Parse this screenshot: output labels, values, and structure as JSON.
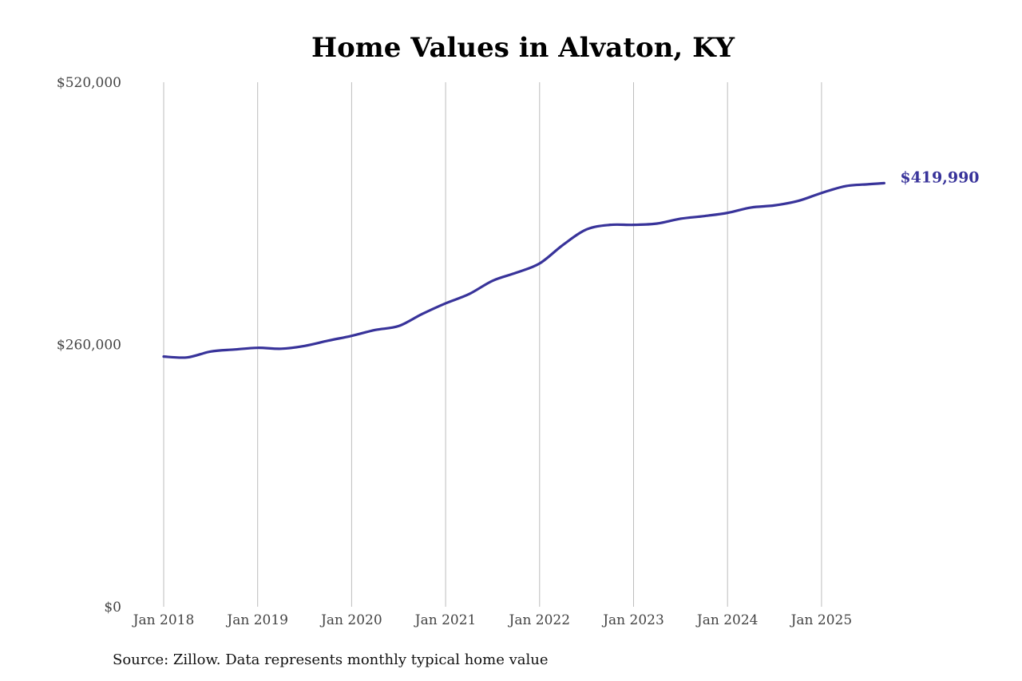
{
  "chart_data": {
    "type": "line",
    "title": "Home Values in Alvaton, KY",
    "source_note": "Source: Zillow. Data represents monthly typical home value",
    "xlabel": "",
    "ylabel": "",
    "ylim": [
      0,
      520000
    ],
    "y_ticks": [
      0,
      260000,
      520000
    ],
    "y_tick_labels": [
      "$0",
      "$260,000",
      "$520,000"
    ],
    "x_ticks": [
      "2018-01",
      "2019-01",
      "2020-01",
      "2021-01",
      "2022-01",
      "2023-01",
      "2024-01",
      "2025-01"
    ],
    "x_tick_labels": [
      "Jan 2018",
      "Jan 2019",
      "Jan 2020",
      "Jan 2021",
      "Jan 2022",
      "Jan 2023",
      "Jan 2024",
      "Jan 2025"
    ],
    "grid": {
      "vertical": true,
      "horizontal": false
    },
    "legend": "none",
    "line_color": "#38339a",
    "end_label": "$419,990",
    "x": [
      "2018-01",
      "2018-04",
      "2018-07",
      "2018-10",
      "2019-01",
      "2019-04",
      "2019-07",
      "2019-10",
      "2020-01",
      "2020-04",
      "2020-07",
      "2020-10",
      "2021-01",
      "2021-04",
      "2021-07",
      "2021-10",
      "2022-01",
      "2022-04",
      "2022-07",
      "2022-10",
      "2023-01",
      "2023-04",
      "2023-07",
      "2023-10",
      "2024-01",
      "2024-04",
      "2024-07",
      "2024-10",
      "2025-01",
      "2025-04",
      "2025-07",
      "2025-09"
    ],
    "values": [
      248000,
      247200,
      253000,
      255000,
      256700,
      255800,
      258600,
      263800,
      268600,
      274400,
      278300,
      290200,
      300800,
      310000,
      323200,
      331100,
      340300,
      358800,
      374100,
      378600,
      378600,
      379900,
      384700,
      387300,
      390500,
      395800,
      397900,
      402300,
      410200,
      416900,
      418900,
      419990
    ]
  }
}
